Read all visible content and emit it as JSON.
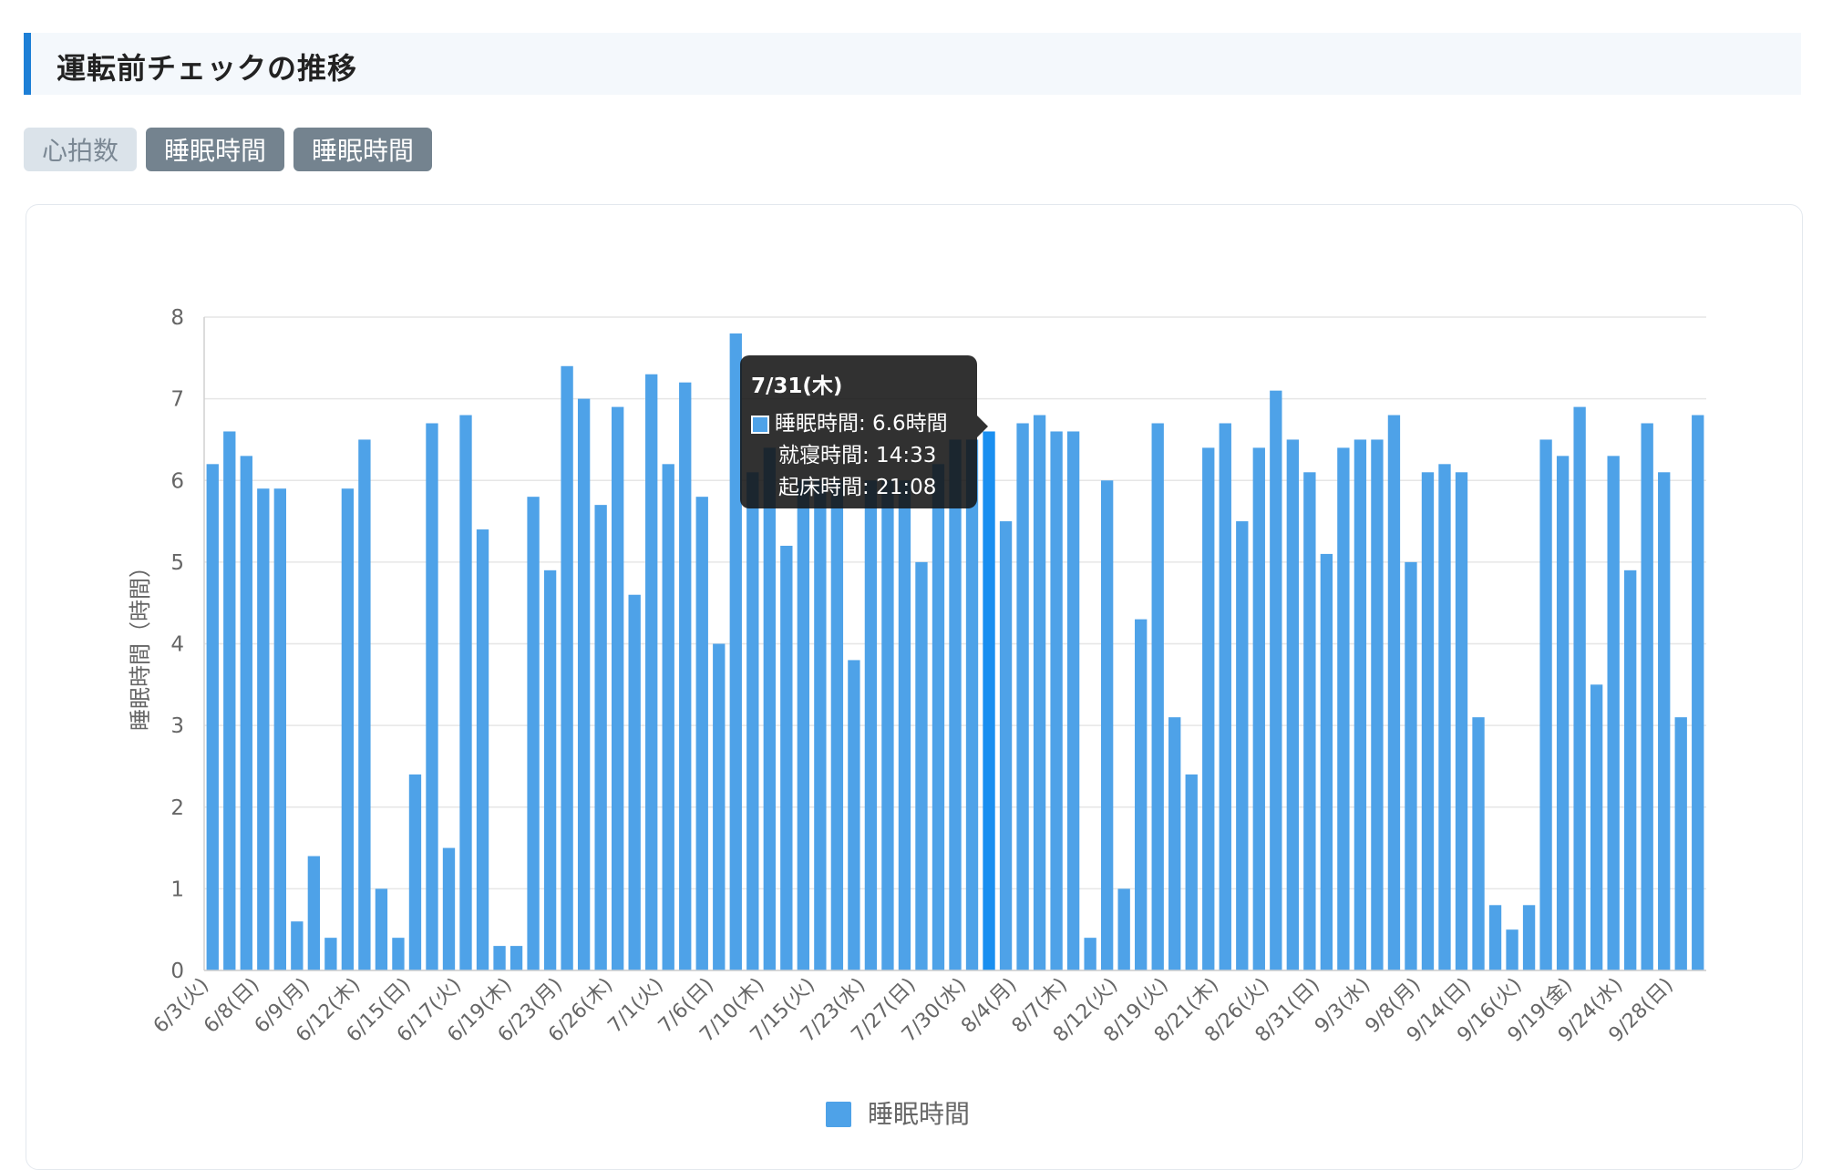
{
  "header": {
    "title": "運転前チェックの推移"
  },
  "tabs": [
    {
      "label": "心拍数",
      "active": false
    },
    {
      "label": "睡眠時間",
      "active": true
    },
    {
      "label": "睡眠時間",
      "active": true
    }
  ],
  "colors": {
    "accent": "#1d7fd6",
    "bar": "#4ea2e8",
    "bar_highlight": "#1a8ff0"
  },
  "tooltip": {
    "title": "7/31(木)",
    "line1": "睡眠時間: 6.6時間",
    "line2": "就寝時間: 14:33",
    "line3": "起床時間: 21:08"
  },
  "chart_data": {
    "type": "bar",
    "ylabel": "睡眠時間（時間）",
    "ylim": [
      0,
      8
    ],
    "yticks": [
      0,
      1,
      2,
      3,
      4,
      5,
      6,
      7,
      8
    ],
    "x_tick_labels": [
      "6/3(火)",
      "6/8(日)",
      "6/9(月)",
      "6/12(木)",
      "6/15(日)",
      "6/17(火)",
      "6/19(木)",
      "6/23(月)",
      "6/26(木)",
      "7/1(火)",
      "7/6(日)",
      "7/10(木)",
      "7/15(火)",
      "7/23(水)",
      "7/27(日)",
      "7/30(水)",
      "8/4(月)",
      "8/7(木)",
      "8/12(火)",
      "8/19(火)",
      "8/21(木)",
      "8/26(火)",
      "8/31(日)",
      "9/3(水)",
      "9/8(月)",
      "9/14(日)",
      "9/16(火)",
      "9/19(金)",
      "9/24(水)",
      "9/28(日)"
    ],
    "highlight_category": "7/31(木)",
    "series": [
      {
        "name": "睡眠時間",
        "values": [
          6.2,
          6.6,
          6.3,
          5.9,
          5.9,
          0.6,
          1.4,
          0.4,
          5.9,
          6.5,
          1.0,
          0.4,
          2.4,
          6.7,
          1.5,
          6.8,
          5.4,
          0.3,
          0.3,
          5.8,
          4.9,
          7.4,
          7.0,
          5.7,
          6.9,
          4.6,
          7.3,
          6.2,
          7.2,
          5.8,
          4.0,
          7.8,
          6.1,
          6.4,
          5.2,
          6.0,
          6.0,
          6.0,
          3.8,
          6.0,
          6.0,
          6.0,
          5.0,
          6.2,
          6.5,
          6.5,
          6.6,
          5.5,
          6.7,
          6.8,
          6.6,
          6.6,
          0.4,
          6.0,
          1.0,
          4.3,
          6.7,
          3.1,
          2.4,
          6.4,
          6.7,
          5.5,
          6.4,
          7.1,
          6.5,
          6.1,
          5.1,
          6.4,
          6.5,
          6.5,
          6.8,
          5.0,
          6.1,
          6.2,
          6.1,
          3.1,
          0.8,
          0.5,
          0.8,
          6.5,
          6.3,
          6.9,
          3.5,
          6.3,
          4.9,
          6.7,
          6.1,
          3.1,
          6.8
        ]
      }
    ],
    "legend": {
      "position": "bottom",
      "label": "睡眠時間"
    },
    "grid": true
  }
}
